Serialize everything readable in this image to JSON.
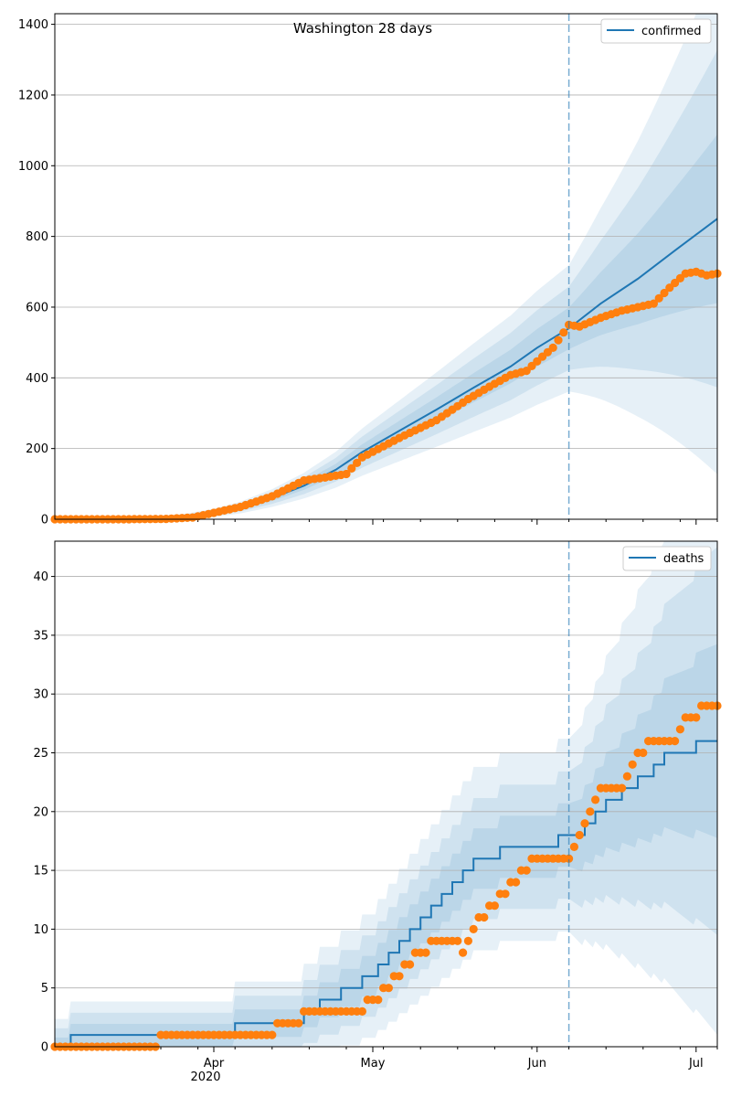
{
  "figure": {
    "title": "Washington 28 days",
    "x_tick_labels": [
      "Apr",
      "May",
      "Jun",
      "Jul"
    ],
    "x_year_label": "2020"
  },
  "colors": {
    "model": "#1f77b4",
    "observed": "#ff7f0e",
    "grid": "#b0b0b0",
    "vline": "#1f77b4"
  },
  "chart_data": [
    {
      "type": "line",
      "title": "Washington 28 days",
      "legend": [
        "confirmed"
      ],
      "legend_position": "top-right",
      "grid": "y",
      "x_range": [
        "2020-03-02",
        "2020-07-05"
      ],
      "ylim": [
        0,
        1430
      ],
      "y_ticks": [
        0,
        200,
        400,
        600,
        800,
        1000,
        1200,
        1400
      ],
      "forecast_start": "2020-06-07",
      "series": [
        {
          "name": "confirmed",
          "kind": "model median",
          "x": [
            "2020-03-02",
            "2020-03-16",
            "2020-03-23",
            "2020-03-27",
            "2020-04-01",
            "2020-04-06",
            "2020-04-12",
            "2020-04-18",
            "2020-04-24",
            "2020-04-29",
            "2020-05-06",
            "2020-05-13",
            "2020-05-20",
            "2020-05-27",
            "2020-06-01",
            "2020-06-07",
            "2020-06-13",
            "2020-06-20",
            "2020-06-27",
            "2020-07-05"
          ],
          "values": [
            0,
            1,
            3,
            8,
            18,
            33,
            60,
            95,
            140,
            190,
            250,
            310,
            372,
            432,
            485,
            540,
            610,
            680,
            760,
            850
          ]
        },
        {
          "name": "observed",
          "kind": "points",
          "x": [
            "2020-03-02",
            "2020-03-16",
            "2020-03-23",
            "2020-03-28",
            "2020-04-01",
            "2020-04-06",
            "2020-04-12",
            "2020-04-18",
            "2020-04-22",
            "2020-04-26",
            "2020-04-29",
            "2020-05-06",
            "2020-05-13",
            "2020-05-16",
            "2020-05-19",
            "2020-05-23",
            "2020-05-27",
            "2020-05-30",
            "2020-06-02",
            "2020-06-04",
            "2020-06-07",
            "2020-06-09",
            "2020-06-13",
            "2020-06-17",
            "2020-06-20",
            "2020-06-23",
            "2020-06-26",
            "2020-06-29",
            "2020-07-01",
            "2020-07-03",
            "2020-07-05"
          ],
          "values": [
            0,
            0,
            1,
            5,
            18,
            35,
            65,
            110,
            118,
            128,
            175,
            230,
            280,
            310,
            340,
            375,
            408,
            420,
            460,
            485,
            550,
            545,
            570,
            590,
            600,
            610,
            655,
            695,
            700,
            690,
            695
          ]
        }
      ]
    },
    {
      "type": "line",
      "legend": [
        "deaths"
      ],
      "legend_position": "top-right",
      "grid": "y",
      "x_range": [
        "2020-03-02",
        "2020-07-05"
      ],
      "ylim": [
        0,
        43
      ],
      "y_ticks": [
        0,
        5,
        10,
        15,
        20,
        25,
        30,
        35,
        40
      ],
      "forecast_start": "2020-06-07",
      "series": [
        {
          "name": "deaths",
          "kind": "model median (step)",
          "x": [
            "2020-03-02",
            "2020-03-05",
            "2020-04-05",
            "2020-04-18",
            "2020-04-21",
            "2020-04-25",
            "2020-04-29",
            "2020-05-02",
            "2020-05-04",
            "2020-05-06",
            "2020-05-08",
            "2020-05-10",
            "2020-05-12",
            "2020-05-14",
            "2020-05-16",
            "2020-05-18",
            "2020-05-20",
            "2020-05-23",
            "2020-05-25",
            "2020-05-27",
            "2020-05-30",
            "2020-06-02",
            "2020-06-05",
            "2020-06-08",
            "2020-06-10",
            "2020-06-12",
            "2020-06-14",
            "2020-06-17",
            "2020-06-20",
            "2020-06-23",
            "2020-06-25",
            "2020-06-28",
            "2020-07-01",
            "2020-07-04",
            "2020-07-05"
          ],
          "values": [
            0,
            1,
            2,
            3,
            4,
            5,
            6,
            7,
            8,
            9,
            10,
            11,
            12,
            13,
            14,
            15,
            16,
            16,
            17,
            17,
            17,
            17,
            18,
            18,
            19,
            20,
            21,
            22,
            23,
            24,
            25,
            25,
            26,
            26,
            26
          ]
        },
        {
          "name": "observed",
          "kind": "points",
          "x": [
            "2020-03-02",
            "2020-04-10",
            "2020-04-20",
            "2020-04-28",
            "2020-05-01",
            "2020-05-06",
            "2020-05-08",
            "2020-05-10",
            "2020-05-13",
            "2020-05-16",
            "2020-05-18",
            "2020-05-20",
            "2020-05-22",
            "2020-05-24",
            "2020-05-26",
            "2020-05-28",
            "2020-05-30",
            "2020-06-01",
            "2020-06-07",
            "2020-06-11",
            "2020-06-13",
            "2020-06-17",
            "2020-06-20",
            "2020-06-24",
            "2020-06-27",
            "2020-06-29",
            "2020-07-01",
            "2020-07-03",
            "2020-07-05"
          ],
          "values": [
            0,
            1,
            3,
            3,
            4,
            6,
            7,
            8,
            9,
            9,
            8,
            10,
            11,
            12,
            13,
            14,
            15,
            16,
            16,
            20,
            22,
            22,
            25,
            26,
            26,
            28,
            28,
            29,
            29
          ]
        }
      ]
    }
  ]
}
